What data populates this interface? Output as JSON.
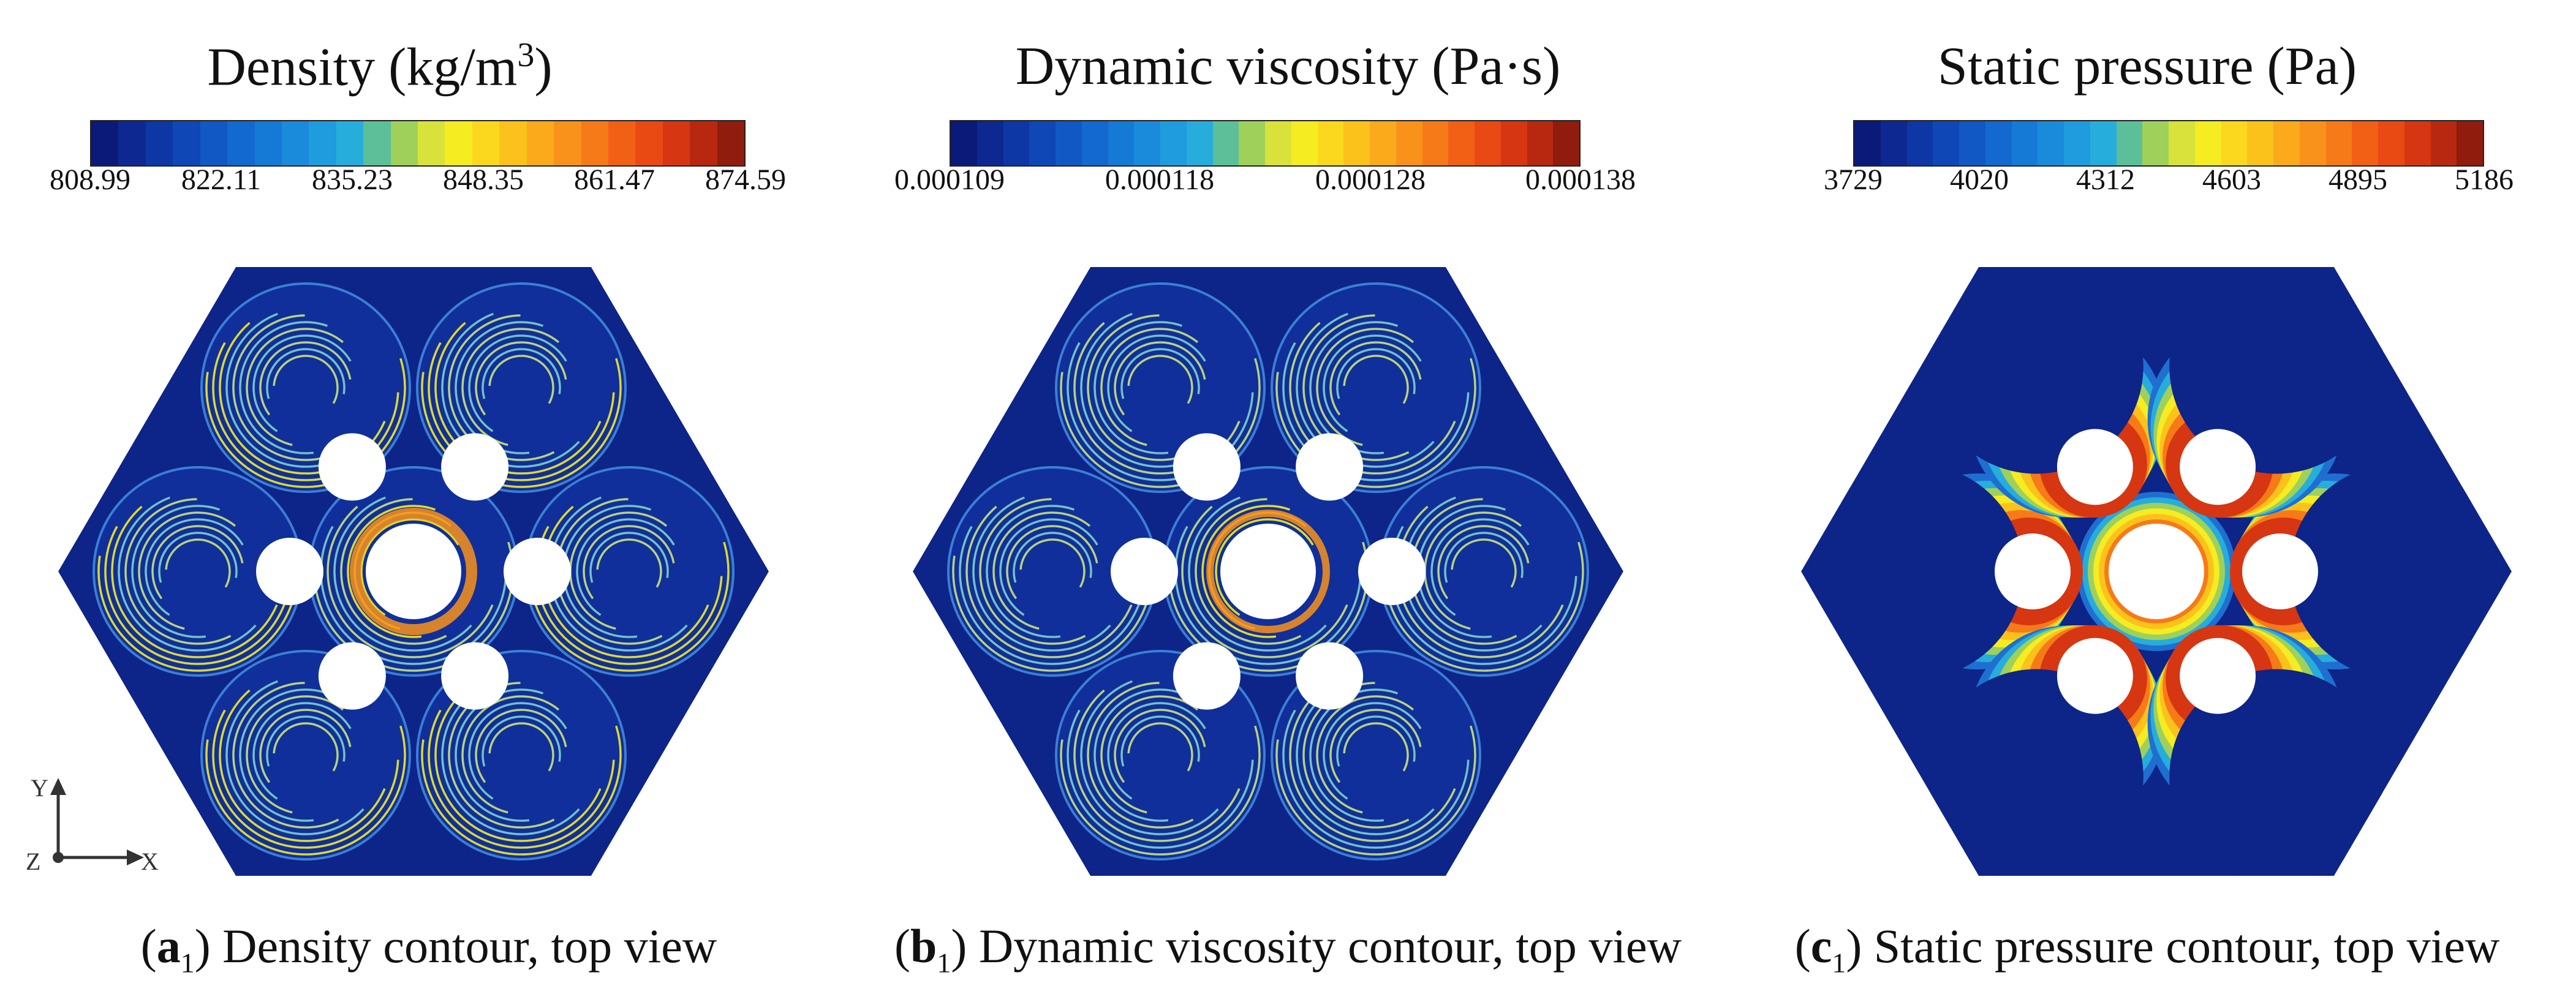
{
  "panels": [
    {
      "id": "a1",
      "colorbar_title": "Density (kg/m",
      "colorbar_title_sup": "3",
      "colorbar_title_end": ")",
      "ticks": [
        "808.99",
        "822.11",
        "835.23",
        "848.35",
        "861.47",
        "874.59"
      ],
      "caption_letter": "a",
      "caption_sub": "1",
      "caption_text": ") Density contour, top view",
      "field": "density"
    },
    {
      "id": "b1",
      "colorbar_title": "Dynamic viscosity (Pa·s)",
      "ticks": [
        "0.000109",
        "0.000118",
        "0.000128",
        "0.000138"
      ],
      "caption_letter": "b",
      "caption_sub": "1",
      "caption_text": ") Dynamic viscosity contour, top view",
      "field": "viscosity"
    },
    {
      "id": "c1",
      "colorbar_title": "Static pressure (Pa)",
      "ticks": [
        "3729",
        "4020",
        "4312",
        "4603",
        "4895",
        "5186"
      ],
      "caption_letter": "c",
      "caption_sub": "1",
      "caption_text": ") Static pressure contour, top view",
      "field": "pressure"
    }
  ],
  "axes": {
    "y": "Y",
    "z": "Z",
    "x": "X"
  },
  "colormap": [
    "#0b1a78",
    "#0d2890",
    "#0e37a6",
    "#0f47b6",
    "#1158c4",
    "#1369cf",
    "#157ad6",
    "#1a8bdb",
    "#1f9cdd",
    "#27addc",
    "#5cbf9a",
    "#9fd05a",
    "#d9e23a",
    "#f5ec22",
    "#fbd81e",
    "#fcc21c",
    "#fbaa1b",
    "#f9921a",
    "#f67a18",
    "#f26016",
    "#e94a14",
    "#d63612",
    "#b82810",
    "#8f1c0c"
  ]
}
